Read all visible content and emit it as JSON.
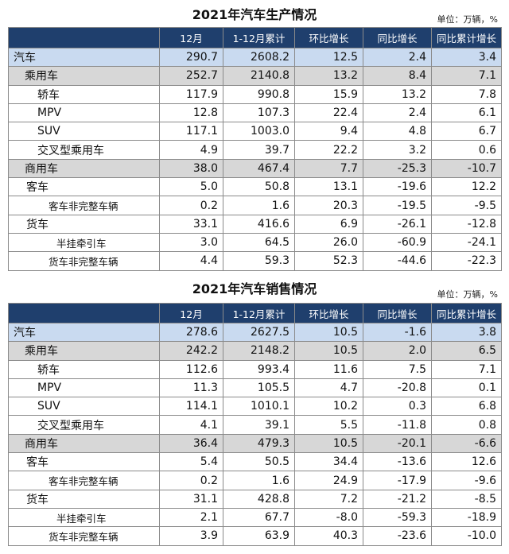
{
  "production": {
    "title": "2021年汽车生产情况",
    "unit": "单位：万辆，%",
    "headers": [
      "",
      "12月",
      "1-12月累计",
      "环比增长",
      "同比增长",
      "同比累计增长"
    ],
    "rows": [
      {
        "level": "lv0",
        "label": "汽车",
        "values": [
          "290.7",
          "2608.2",
          "12.5",
          "2.4",
          "3.4"
        ]
      },
      {
        "level": "lv1",
        "label": "乘用车",
        "values": [
          "252.7",
          "2140.8",
          "13.2",
          "8.4",
          "7.1"
        ]
      },
      {
        "level": "lv2",
        "label": "轿车",
        "values": [
          "117.9",
          "990.8",
          "15.9",
          "13.2",
          "7.8"
        ]
      },
      {
        "level": "lv2",
        "label": "MPV",
        "values": [
          "12.8",
          "107.3",
          "22.4",
          "2.4",
          "6.1"
        ]
      },
      {
        "level": "lv2",
        "label": "SUV",
        "values": [
          "117.1",
          "1003.0",
          "9.4",
          "4.8",
          "6.7"
        ]
      },
      {
        "level": "lv2",
        "label": "交叉型乘用车",
        "values": [
          "4.9",
          "39.7",
          "22.2",
          "3.2",
          "0.6"
        ]
      },
      {
        "level": "lv1",
        "label": "商用车",
        "values": [
          "38.0",
          "467.4",
          "7.7",
          "-25.3",
          "-10.7"
        ]
      },
      {
        "level": "lv3",
        "label": "客车",
        "values": [
          "5.0",
          "50.8",
          "13.1",
          "-19.6",
          "12.2"
        ]
      },
      {
        "level": "lv3s",
        "label": "客车非完整车辆",
        "values": [
          "0.2",
          "1.6",
          "20.3",
          "-19.5",
          "-9.5"
        ]
      },
      {
        "level": "lv3",
        "label": "货车",
        "values": [
          "33.1",
          "416.6",
          "6.9",
          "-26.1",
          "-12.8"
        ]
      },
      {
        "level": "lv4",
        "label": "半挂牵引车",
        "values": [
          "3.0",
          "64.5",
          "26.0",
          "-60.9",
          "-24.1"
        ]
      },
      {
        "level": "lv3s",
        "label": "货车非完整车辆",
        "values": [
          "4.4",
          "59.3",
          "52.3",
          "-44.6",
          "-22.3"
        ]
      }
    ]
  },
  "sales": {
    "title": "2021年汽车销售情况",
    "unit": "单位：万辆，%",
    "headers": [
      "",
      "12月",
      "1-12月累计",
      "环比增长",
      "同比增长",
      "同比累计增长"
    ],
    "rows": [
      {
        "level": "lv0",
        "label": "汽车",
        "values": [
          "278.6",
          "2627.5",
          "10.5",
          "-1.6",
          "3.8"
        ]
      },
      {
        "level": "lv1",
        "label": "乘用车",
        "values": [
          "242.2",
          "2148.2",
          "10.5",
          "2.0",
          "6.5"
        ]
      },
      {
        "level": "lv2",
        "label": "轿车",
        "values": [
          "112.6",
          "993.4",
          "11.6",
          "7.5",
          "7.1"
        ]
      },
      {
        "level": "lv2",
        "label": "MPV",
        "values": [
          "11.3",
          "105.5",
          "4.7",
          "-20.8",
          "0.1"
        ]
      },
      {
        "level": "lv2",
        "label": "SUV",
        "values": [
          "114.1",
          "1010.1",
          "10.2",
          "0.3",
          "6.8"
        ]
      },
      {
        "level": "lv2",
        "label": "交叉型乘用车",
        "values": [
          "4.1",
          "39.1",
          "5.5",
          "-11.8",
          "0.8"
        ]
      },
      {
        "level": "lv1",
        "label": "商用车",
        "values": [
          "36.4",
          "479.3",
          "10.5",
          "-20.1",
          "-6.6"
        ]
      },
      {
        "level": "lv3",
        "label": "客车",
        "values": [
          "5.4",
          "50.5",
          "34.4",
          "-13.6",
          "12.6"
        ]
      },
      {
        "level": "lv3s",
        "label": "客车非完整车辆",
        "values": [
          "0.2",
          "1.6",
          "24.9",
          "-17.9",
          "-9.6"
        ]
      },
      {
        "level": "lv3",
        "label": "货车",
        "values": [
          "31.1",
          "428.8",
          "7.2",
          "-21.2",
          "-8.5"
        ]
      },
      {
        "level": "lv4",
        "label": "半挂牵引车",
        "values": [
          "2.1",
          "67.7",
          "-8.0",
          "-59.3",
          "-18.9"
        ]
      },
      {
        "level": "lv3s",
        "label": "货车非完整车辆",
        "values": [
          "3.9",
          "63.9",
          "40.3",
          "-23.6",
          "-10.0"
        ]
      }
    ]
  }
}
